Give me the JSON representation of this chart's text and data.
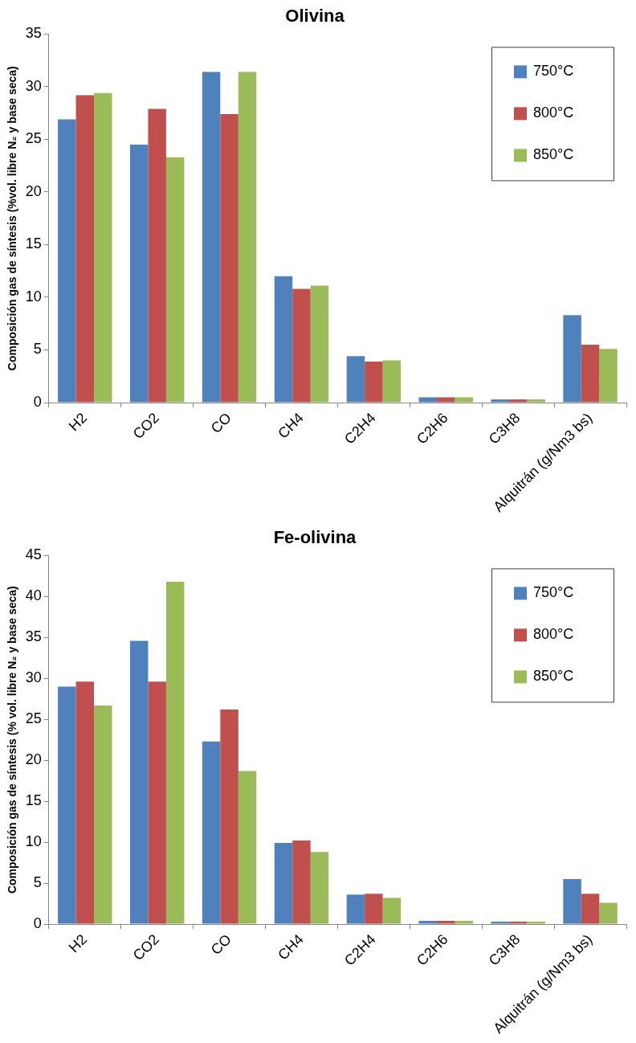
{
  "chart_data": [
    {
      "type": "bar",
      "title": "Olivina",
      "ylabel": "Composición gas de síntesis (%vol. libre N₂ y base seca)",
      "categories": [
        "H2",
        "CO2",
        "CO",
        "CH4",
        "C2H4",
        "C2H6",
        "C3H8",
        "Alquitrán (g/Nm3 bs)"
      ],
      "series": [
        {
          "name": "750°C",
          "color": "#4f81bd",
          "values": [
            26.9,
            24.5,
            31.4,
            12.0,
            4.4,
            0.5,
            0.3,
            8.3
          ]
        },
        {
          "name": "800°C",
          "color": "#c0504d",
          "values": [
            29.2,
            27.9,
            27.4,
            10.8,
            3.9,
            0.5,
            0.3,
            5.5
          ]
        },
        {
          "name": "850°C",
          "color": "#9bbb59",
          "values": [
            29.4,
            23.3,
            31.4,
            11.1,
            4.0,
            0.5,
            0.3,
            5.1
          ]
        }
      ],
      "ylim": [
        0,
        35
      ],
      "yticks": [
        0,
        5,
        10,
        15,
        20,
        25,
        30,
        35
      ],
      "legend": "top right"
    },
    {
      "type": "bar",
      "title": "Fe-olivina",
      "ylabel": "Composición gas de síntesis (% vol. libre N₂ y base seca)",
      "categories": [
        "H2",
        "CO2",
        "CO",
        "CH4",
        "C2H4",
        "C2H6",
        "C3H8",
        "Alquitrán (g/Nm3 bs)"
      ],
      "series": [
        {
          "name": "750°C",
          "color": "#4f81bd",
          "values": [
            29.0,
            34.6,
            22.3,
            9.9,
            3.6,
            0.4,
            0.3,
            5.5
          ]
        },
        {
          "name": "800°C",
          "color": "#c0504d",
          "values": [
            29.6,
            29.6,
            26.2,
            10.2,
            3.7,
            0.4,
            0.3,
            3.7
          ]
        },
        {
          "name": "850°C",
          "color": "#9bbb59",
          "values": [
            26.7,
            41.8,
            18.7,
            8.8,
            3.2,
            0.4,
            0.3,
            2.6
          ]
        }
      ],
      "ylim": [
        0,
        45
      ],
      "yticks": [
        0,
        5,
        10,
        15,
        20,
        25,
        30,
        35,
        40,
        45
      ],
      "legend": "top right"
    }
  ]
}
